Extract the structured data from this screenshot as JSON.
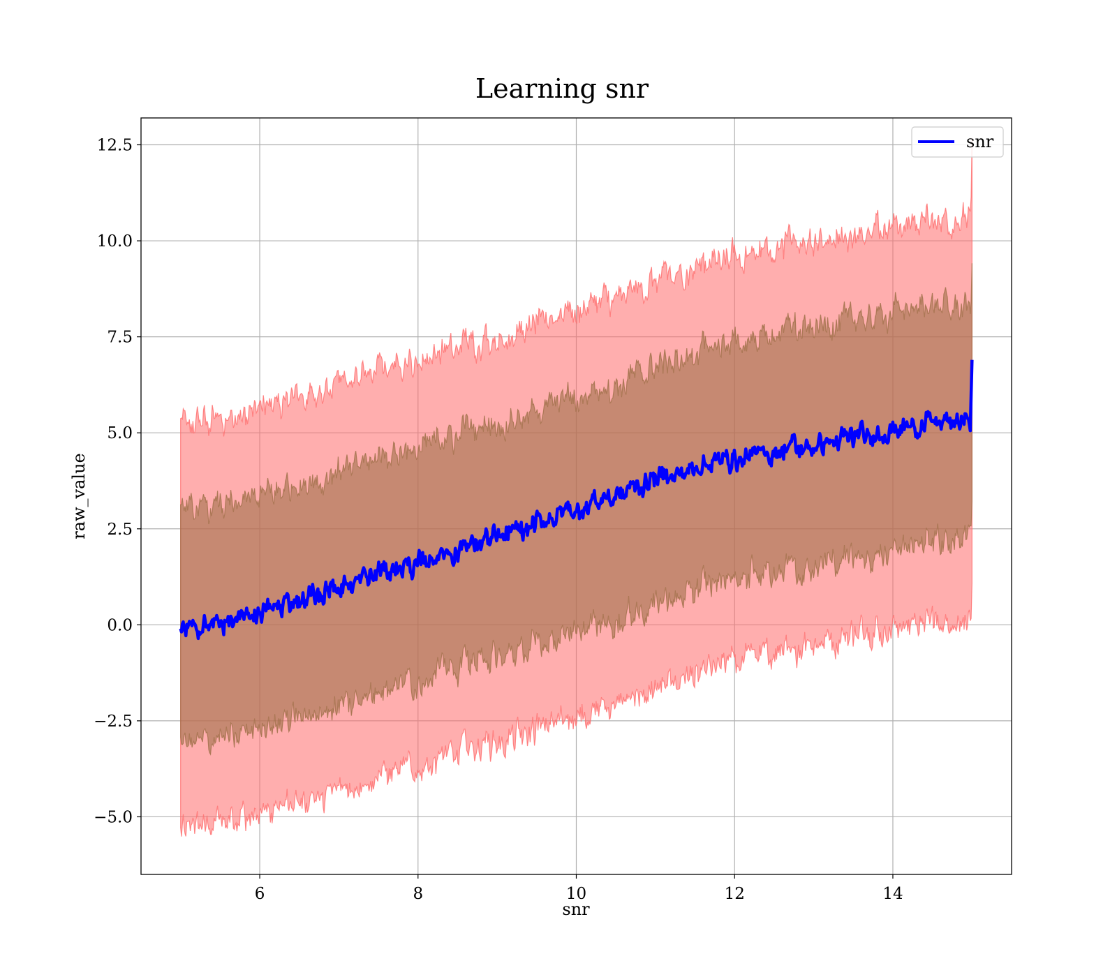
{
  "chart_data": {
    "type": "area",
    "title": "Learning snr",
    "xlabel": "snr",
    "ylabel": "raw_value",
    "xlim": [
      4.5,
      15.5
    ],
    "ylim": [
      -6.5,
      13.2
    ],
    "xticks": [
      6,
      8,
      10,
      12,
      14
    ],
    "yticks": [
      -5.0,
      -2.5,
      0.0,
      2.5,
      5.0,
      7.5,
      10.0,
      12.5
    ],
    "xtick_labels": [
      "6",
      "8",
      "10",
      "12",
      "14"
    ],
    "ytick_labels": [
      "−5.0",
      "−2.5",
      "0.0",
      "2.5",
      "5.0",
      "7.5",
      "10.0",
      "12.5"
    ],
    "grid": true,
    "legend": {
      "position": "upper-right",
      "entries": [
        "snr"
      ]
    },
    "x_range": [
      5.0,
      15.0
    ],
    "series": [
      {
        "name": "snr",
        "color": "#0000ff",
        "start_value": -0.2,
        "end_value": 5.4,
        "final_spike": 6.9,
        "x": [
          5,
          6,
          7,
          8,
          9,
          10,
          11,
          12,
          13,
          14,
          15
        ],
        "values": [
          -0.2,
          0.3,
          1.0,
          1.6,
          2.3,
          3.0,
          3.8,
          4.3,
          4.7,
          5.1,
          5.4
        ]
      }
    ],
    "bands": [
      {
        "label_shown": false,
        "color": "#ff6b6b",
        "lower": [
          -5.4,
          -4.9,
          -4.3,
          -3.7,
          -3.0,
          -2.4,
          -1.7,
          -1.0,
          -0.5,
          -0.1,
          0.2
        ],
        "upper": [
          5.1,
          5.6,
          6.3,
          6.9,
          7.5,
          8.2,
          8.9,
          9.6,
          10.0,
          10.4,
          10.7
        ]
      },
      {
        "label_shown": false,
        "color": "#a0704a",
        "lower": [
          -3.2,
          -2.7,
          -2.1,
          -1.4,
          -0.8,
          -0.2,
          0.5,
          1.2,
          1.6,
          2.0,
          2.4
        ],
        "upper": [
          2.9,
          3.3,
          4.0,
          4.6,
          5.3,
          5.9,
          6.7,
          7.3,
          7.8,
          8.2,
          8.4
        ]
      }
    ]
  }
}
